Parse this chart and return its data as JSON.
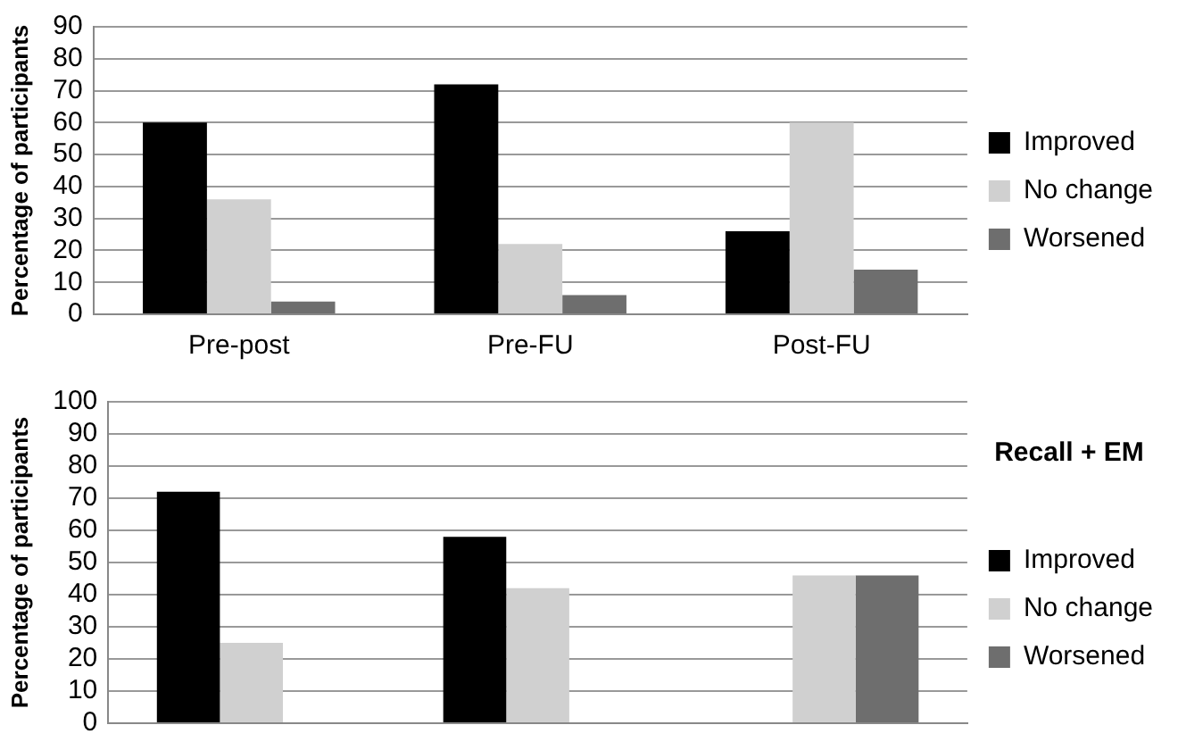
{
  "chart_data": [
    {
      "type": "bar",
      "ylabel": "Percentage of participants",
      "categories": [
        "Pre-post",
        "Pre-FU",
        "Post-FU"
      ],
      "series": [
        {
          "name": "Improved",
          "color": "#000000",
          "values": [
            60,
            72,
            26
          ]
        },
        {
          "name": "No change",
          "color": "#d0d0d0",
          "values": [
            36,
            22,
            60
          ]
        },
        {
          "name": "Worsened",
          "color": "#6e6e6e",
          "values": [
            4,
            6,
            14
          ]
        }
      ],
      "ylim": [
        0,
        90
      ],
      "yticks": [
        0,
        10,
        20,
        30,
        40,
        50,
        60,
        70,
        80,
        90
      ],
      "grid": "y",
      "legend": "right"
    },
    {
      "type": "bar",
      "legend_title": "Recall + EM",
      "ylabel": "Percentage of participants",
      "categories": [
        null,
        null,
        null
      ],
      "series": [
        {
          "name": "Improved",
          "color": "#000000",
          "values": [
            72,
            58,
            null
          ]
        },
        {
          "name": "No change",
          "color": "#d0d0d0",
          "values": [
            25,
            42,
            46
          ]
        },
        {
          "name": "Worsened",
          "color": "#6e6e6e",
          "values": [
            null,
            null,
            46
          ]
        }
      ],
      "ylim": [
        0,
        100
      ],
      "yticks": [
        0,
        10,
        20,
        30,
        40,
        50,
        60,
        70,
        80,
        90,
        100
      ],
      "grid": "y",
      "legend": "right",
      "tick_labels": "y"
    }
  ]
}
